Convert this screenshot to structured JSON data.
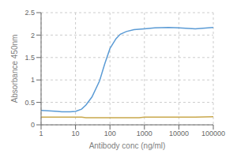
{
  "chart_data": {
    "type": "line",
    "xlabel": "Antibody conc (ng/ml)",
    "ylabel": "Absorbance 450nm",
    "log": "x",
    "x": [
      1,
      2,
      3,
      4,
      5,
      7,
      10,
      15,
      20,
      30,
      50,
      70,
      100,
      150,
      200,
      300,
      500,
      700,
      1000,
      2000,
      5000,
      10000,
      30000,
      100000
    ],
    "series": [
      {
        "color": "#5b9bd5",
        "values": [
          0.32,
          0.31,
          0.3,
          0.29,
          0.29,
          0.29,
          0.3,
          0.35,
          0.44,
          0.62,
          0.98,
          1.35,
          1.7,
          1.92,
          2.02,
          2.08,
          2.12,
          2.13,
          2.14,
          2.16,
          2.17,
          2.16,
          2.14,
          2.17
        ]
      },
      {
        "color": "#c9a84c",
        "values": [
          0.17,
          0.17,
          0.17,
          0.17,
          0.17,
          0.17,
          0.17,
          0.17,
          0.16,
          0.16,
          0.16,
          0.16,
          0.16,
          0.16,
          0.16,
          0.16,
          0.16,
          0.16,
          0.17,
          0.17,
          0.17,
          0.17,
          0.17,
          0.18
        ]
      }
    ],
    "xlim": [
      1,
      100000
    ],
    "ylim": [
      0,
      2.5
    ],
    "xticks": [
      1,
      10,
      100,
      1000,
      10000,
      100000
    ],
    "yticks": [
      0,
      0.5,
      1,
      1.5,
      2,
      2.5
    ],
    "grid": true
  }
}
